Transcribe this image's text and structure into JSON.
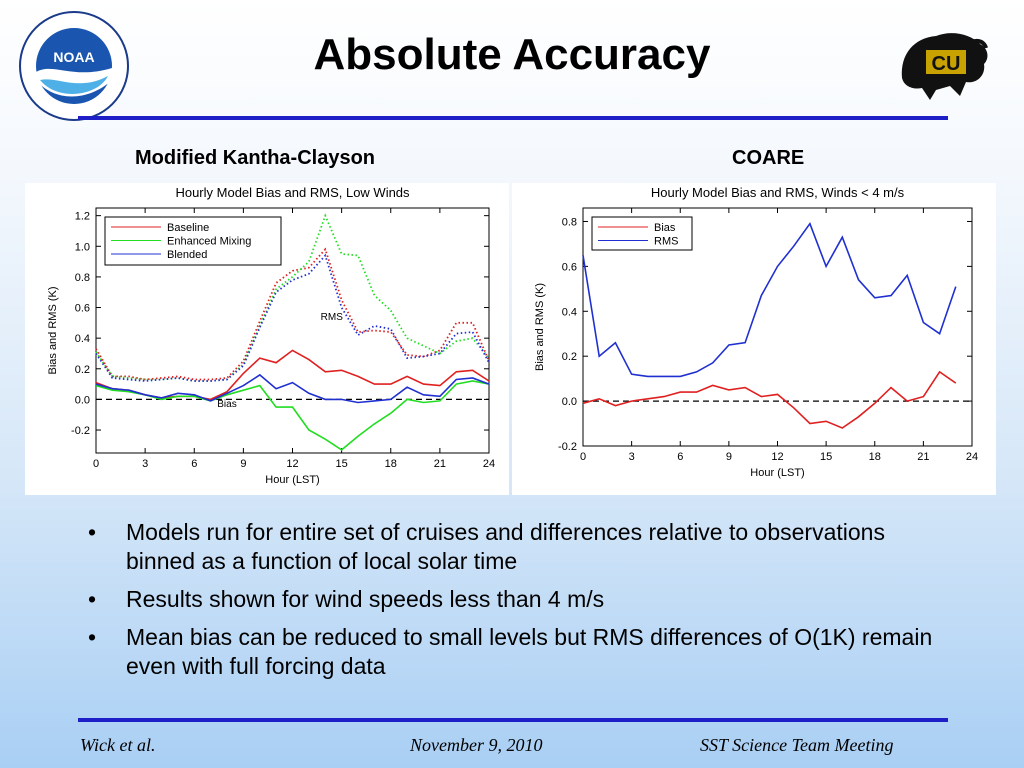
{
  "slide": {
    "title": "Absolute Accuracy",
    "left_heading": "Modified Kantha-Clayson",
    "right_heading": "COARE",
    "bullets": [
      "Models run for entire set of cruises and differences relative to observations binned as a function of local solar time",
      "Results shown for wind speeds less than 4 m/s",
      "Mean bias can be reduced to small levels but RMS differences of O(1K) remain even with full forcing data"
    ],
    "footer": {
      "left": "Wick et al.",
      "center": "November 9, 2010",
      "right": "SST Science Team Meeting"
    },
    "logos": {
      "noaa_text": "NOAA",
      "cu_text": "CU"
    },
    "colors": {
      "rule": "#1f1fc8",
      "red": "#e02020",
      "green": "#22dd22",
      "blue": "#2030d0"
    }
  },
  "chart_data": [
    {
      "type": "line",
      "title": "Hourly Model Bias and RMS, Low Winds",
      "xlabel": "Hour (LST)",
      "ylabel": "Bias and RMS (K)",
      "xlim": [
        0,
        24
      ],
      "ylim": [
        -0.35,
        1.25
      ],
      "xticks": [
        0,
        3,
        6,
        9,
        12,
        15,
        18,
        21,
        24
      ],
      "yticks": [
        -0.2,
        0.0,
        0.2,
        0.4,
        0.6,
        0.8,
        1.0,
        1.2
      ],
      "ytick_labels": [
        "-0.2",
        "0.0",
        "0.2",
        "0.4",
        "0.6",
        "0.8",
        "1.0",
        "1.2"
      ],
      "legend_position": "top-left",
      "annotations": [
        {
          "text": "RMS",
          "x": 14.4,
          "y": 0.52
        },
        {
          "text": "Bias",
          "x": 8.0,
          "y": -0.05
        }
      ],
      "zero_line": true,
      "legend": [
        {
          "label": "Baseline",
          "color": "#e02020"
        },
        {
          "label": "Enhanced Mixing",
          "color": "#22dd22"
        },
        {
          "label": "Blended",
          "color": "#2030d0"
        }
      ],
      "series": [
        {
          "name": "Baseline",
          "group": "Bias",
          "style": "solid",
          "color": "#e02020",
          "x": [
            0,
            1,
            2,
            3,
            4,
            5,
            6,
            7,
            8,
            9,
            10,
            11,
            12,
            13,
            14,
            15,
            16,
            17,
            18,
            19,
            20,
            21,
            22,
            23,
            24
          ],
          "y": [
            0.11,
            0.07,
            0.06,
            0.03,
            0.01,
            0.02,
            0.02,
            0.0,
            0.05,
            0.17,
            0.27,
            0.24,
            0.32,
            0.26,
            0.18,
            0.19,
            0.15,
            0.1,
            0.1,
            0.15,
            0.1,
            0.09,
            0.18,
            0.19,
            0.12
          ]
        },
        {
          "name": "Enhanced Mixing",
          "group": "Bias",
          "style": "solid",
          "color": "#22dd22",
          "x": [
            0,
            1,
            2,
            3,
            4,
            5,
            6,
            7,
            8,
            9,
            10,
            11,
            12,
            13,
            14,
            15,
            16,
            17,
            18,
            19,
            20,
            21,
            22,
            23,
            24
          ],
          "y": [
            0.09,
            0.06,
            0.05,
            0.03,
            0.0,
            0.02,
            0.02,
            -0.01,
            0.03,
            0.06,
            0.09,
            -0.05,
            -0.05,
            -0.2,
            -0.26,
            -0.33,
            -0.24,
            -0.16,
            -0.09,
            0.0,
            -0.02,
            -0.01,
            0.1,
            0.12,
            0.1
          ]
        },
        {
          "name": "Blended",
          "group": "Bias",
          "style": "solid",
          "color": "#2030d0",
          "x": [
            0,
            1,
            2,
            3,
            4,
            5,
            6,
            7,
            8,
            9,
            10,
            11,
            12,
            13,
            14,
            15,
            16,
            17,
            18,
            19,
            20,
            21,
            22,
            23,
            24
          ],
          "y": [
            0.1,
            0.07,
            0.06,
            0.03,
            0.01,
            0.04,
            0.03,
            -0.01,
            0.04,
            0.09,
            0.16,
            0.07,
            0.11,
            0.04,
            0.0,
            0.0,
            -0.02,
            -0.01,
            0.0,
            0.08,
            0.03,
            0.02,
            0.13,
            0.14,
            0.1
          ]
        },
        {
          "name": "Baseline",
          "group": "RMS",
          "style": "dotted",
          "color": "#e02020",
          "x": [
            0,
            1,
            2,
            3,
            4,
            5,
            6,
            7,
            8,
            9,
            10,
            11,
            12,
            13,
            14,
            15,
            16,
            17,
            18,
            19,
            20,
            21,
            22,
            23,
            24
          ],
          "y": [
            0.33,
            0.15,
            0.15,
            0.13,
            0.14,
            0.15,
            0.13,
            0.13,
            0.14,
            0.25,
            0.51,
            0.76,
            0.84,
            0.86,
            0.98,
            0.65,
            0.44,
            0.45,
            0.44,
            0.29,
            0.28,
            0.32,
            0.5,
            0.5,
            0.25
          ]
        },
        {
          "name": "Enhanced Mixing",
          "group": "RMS",
          "style": "dotted",
          "color": "#22dd22",
          "x": [
            0,
            1,
            2,
            3,
            4,
            5,
            6,
            7,
            8,
            9,
            10,
            11,
            12,
            13,
            14,
            15,
            16,
            17,
            18,
            19,
            20,
            21,
            22,
            23,
            24
          ],
          "y": [
            0.31,
            0.15,
            0.14,
            0.13,
            0.13,
            0.14,
            0.12,
            0.12,
            0.13,
            0.23,
            0.48,
            0.72,
            0.8,
            0.9,
            1.2,
            0.95,
            0.94,
            0.68,
            0.58,
            0.4,
            0.35,
            0.3,
            0.38,
            0.4,
            0.27
          ]
        },
        {
          "name": "Blended",
          "group": "RMS",
          "style": "dotted",
          "color": "#2030d0",
          "x": [
            0,
            1,
            2,
            3,
            4,
            5,
            6,
            7,
            8,
            9,
            10,
            11,
            12,
            13,
            14,
            15,
            16,
            17,
            18,
            19,
            20,
            21,
            22,
            23,
            24
          ],
          "y": [
            0.3,
            0.14,
            0.13,
            0.12,
            0.13,
            0.14,
            0.12,
            0.12,
            0.13,
            0.22,
            0.47,
            0.7,
            0.78,
            0.82,
            0.94,
            0.6,
            0.42,
            0.48,
            0.46,
            0.27,
            0.28,
            0.3,
            0.43,
            0.44,
            0.24
          ]
        }
      ]
    },
    {
      "type": "line",
      "title": "Hourly Model Bias and RMS, Winds < 4 m/s",
      "xlabel": "Hour (LST)",
      "ylabel": "Bias and RMS (K)",
      "xlim": [
        0,
        24
      ],
      "ylim": [
        -0.2,
        0.86
      ],
      "xticks": [
        0,
        3,
        6,
        9,
        12,
        15,
        18,
        21,
        24
      ],
      "yticks": [
        -0.2,
        0.0,
        0.2,
        0.4,
        0.6,
        0.8
      ],
      "ytick_labels": [
        "-0.2",
        "0.0",
        "0.2",
        "0.4",
        "0.6",
        "0.8"
      ],
      "legend_position": "top-left",
      "zero_line": true,
      "legend": [
        {
          "label": "Bias",
          "color": "#e02020"
        },
        {
          "label": "RMS",
          "color": "#2030d0"
        }
      ],
      "series": [
        {
          "name": "Bias",
          "style": "solid",
          "color": "#e02020",
          "x": [
            0,
            1,
            2,
            3,
            4,
            5,
            6,
            7,
            8,
            9,
            10,
            11,
            12,
            13,
            14,
            15,
            16,
            17,
            18,
            19,
            20,
            21,
            22,
            23
          ],
          "y": [
            -0.01,
            0.01,
            -0.02,
            0.0,
            0.01,
            0.02,
            0.04,
            0.04,
            0.07,
            0.05,
            0.06,
            0.02,
            0.03,
            -0.03,
            -0.1,
            -0.09,
            -0.12,
            -0.07,
            -0.01,
            0.06,
            0.0,
            0.02,
            0.13,
            0.08
          ]
        },
        {
          "name": "RMS",
          "style": "solid",
          "color": "#2030d0",
          "x": [
            0,
            1,
            2,
            3,
            4,
            5,
            6,
            7,
            8,
            9,
            10,
            11,
            12,
            13,
            14,
            15,
            16,
            17,
            18,
            19,
            20,
            21,
            22,
            23
          ],
          "y": [
            0.65,
            0.2,
            0.26,
            0.12,
            0.11,
            0.11,
            0.11,
            0.13,
            0.17,
            0.25,
            0.26,
            0.47,
            0.6,
            0.69,
            0.79,
            0.6,
            0.73,
            0.54,
            0.46,
            0.47,
            0.56,
            0.35,
            0.3,
            0.51
          ]
        }
      ]
    }
  ]
}
